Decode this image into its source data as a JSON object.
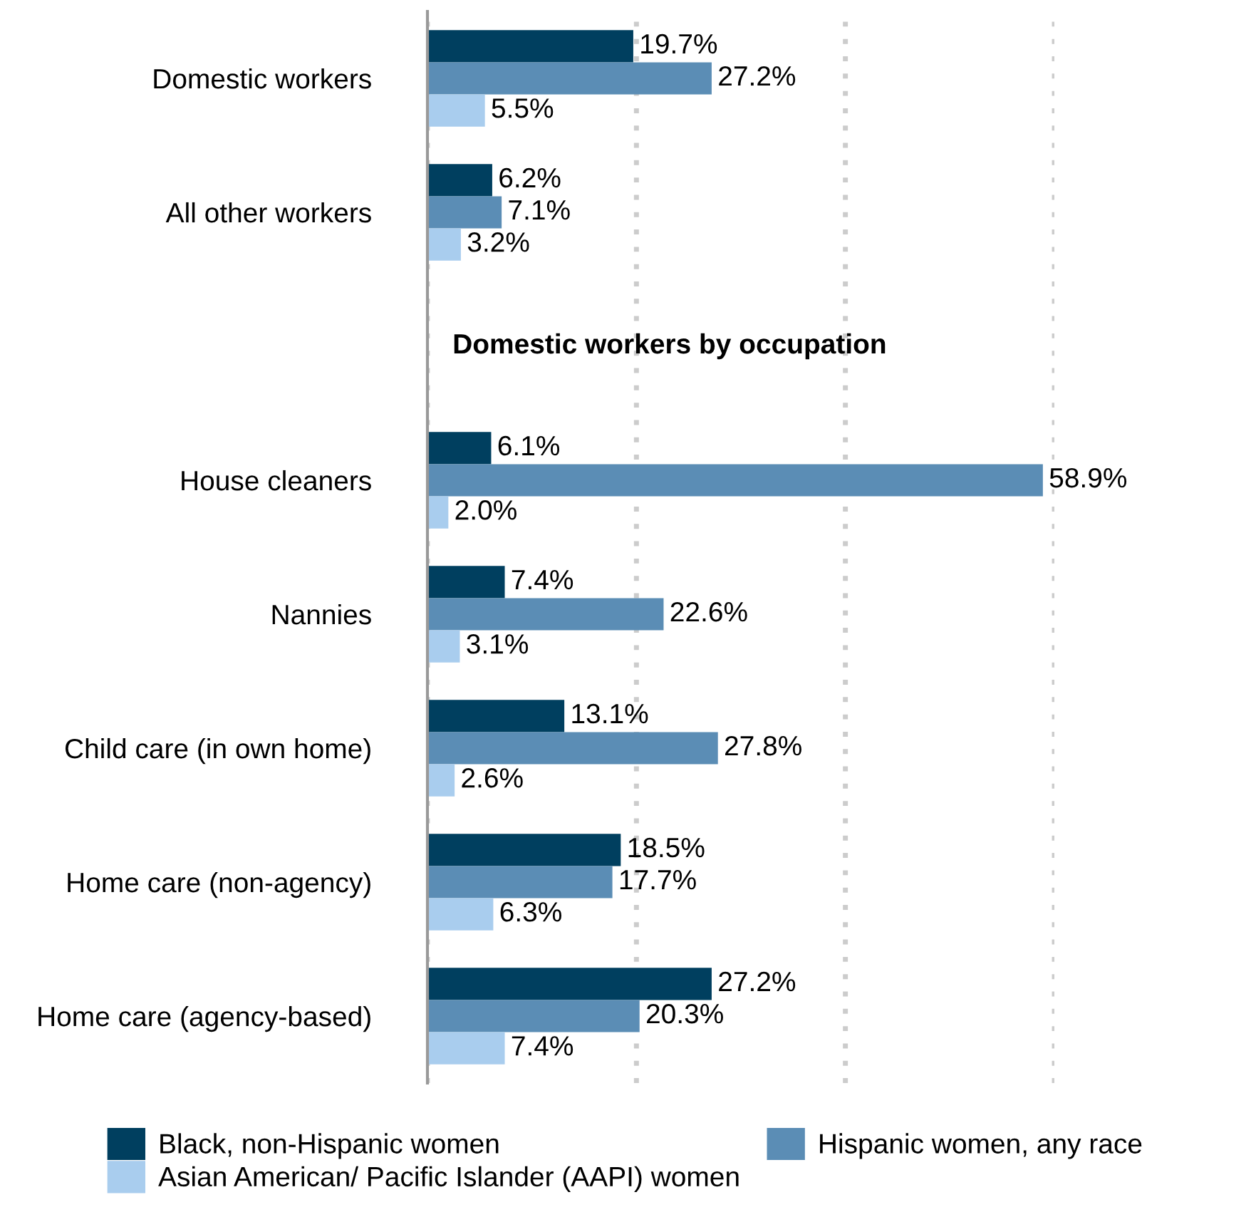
{
  "chart_data": {
    "type": "bar",
    "orientation": "horizontal",
    "categories": [
      "Domestic workers",
      "All other workers",
      null,
      "House cleaners",
      "Nannies",
      "Child care (in own home)",
      "Home care (non-agency)",
      "Home care (agency-based)"
    ],
    "annotations": [
      "Domestic workers by occupation"
    ],
    "series": [
      {
        "name": "Black, non-Hispanic women",
        "color": "#003f5f",
        "values": [
          19.7,
          6.2,
          null,
          6.1,
          7.4,
          13.1,
          18.5,
          27.2
        ],
        "value_labels": [
          "19.7%",
          "6.2%",
          null,
          "6.1%",
          "7.4%",
          "13.1%",
          "18.5%",
          "27.2%"
        ]
      },
      {
        "name": "Hispanic women, any race",
        "color": "#5b8db5",
        "values": [
          27.2,
          7.1,
          null,
          58.9,
          22.6,
          27.8,
          17.7,
          20.3
        ],
        "value_labels": [
          "27.2%",
          "7.1%",
          null,
          "58.9%",
          "22.6%",
          "27.8%",
          "17.7%",
          "20.3%"
        ]
      },
      {
        "name": "Asian American/ Pacific Islander (AAPI) women",
        "color": "#a9cdee",
        "values": [
          5.5,
          3.2,
          null,
          2.0,
          3.1,
          2.6,
          6.3,
          7.4
        ],
        "value_labels": [
          "5.5%",
          "3.2%",
          null,
          "2.0%",
          "3.1%",
          "2.6%",
          "6.3%",
          "7.4%"
        ]
      }
    ],
    "xlim": [
      0,
      60
    ],
    "xticks": [
      {
        "value": 0,
        "label": null
      },
      {
        "value": 20,
        "label": null
      },
      {
        "value": 40,
        "label": null
      },
      {
        "value": 60,
        "label": null
      }
    ],
    "grid": "x",
    "legend": "bottom"
  }
}
